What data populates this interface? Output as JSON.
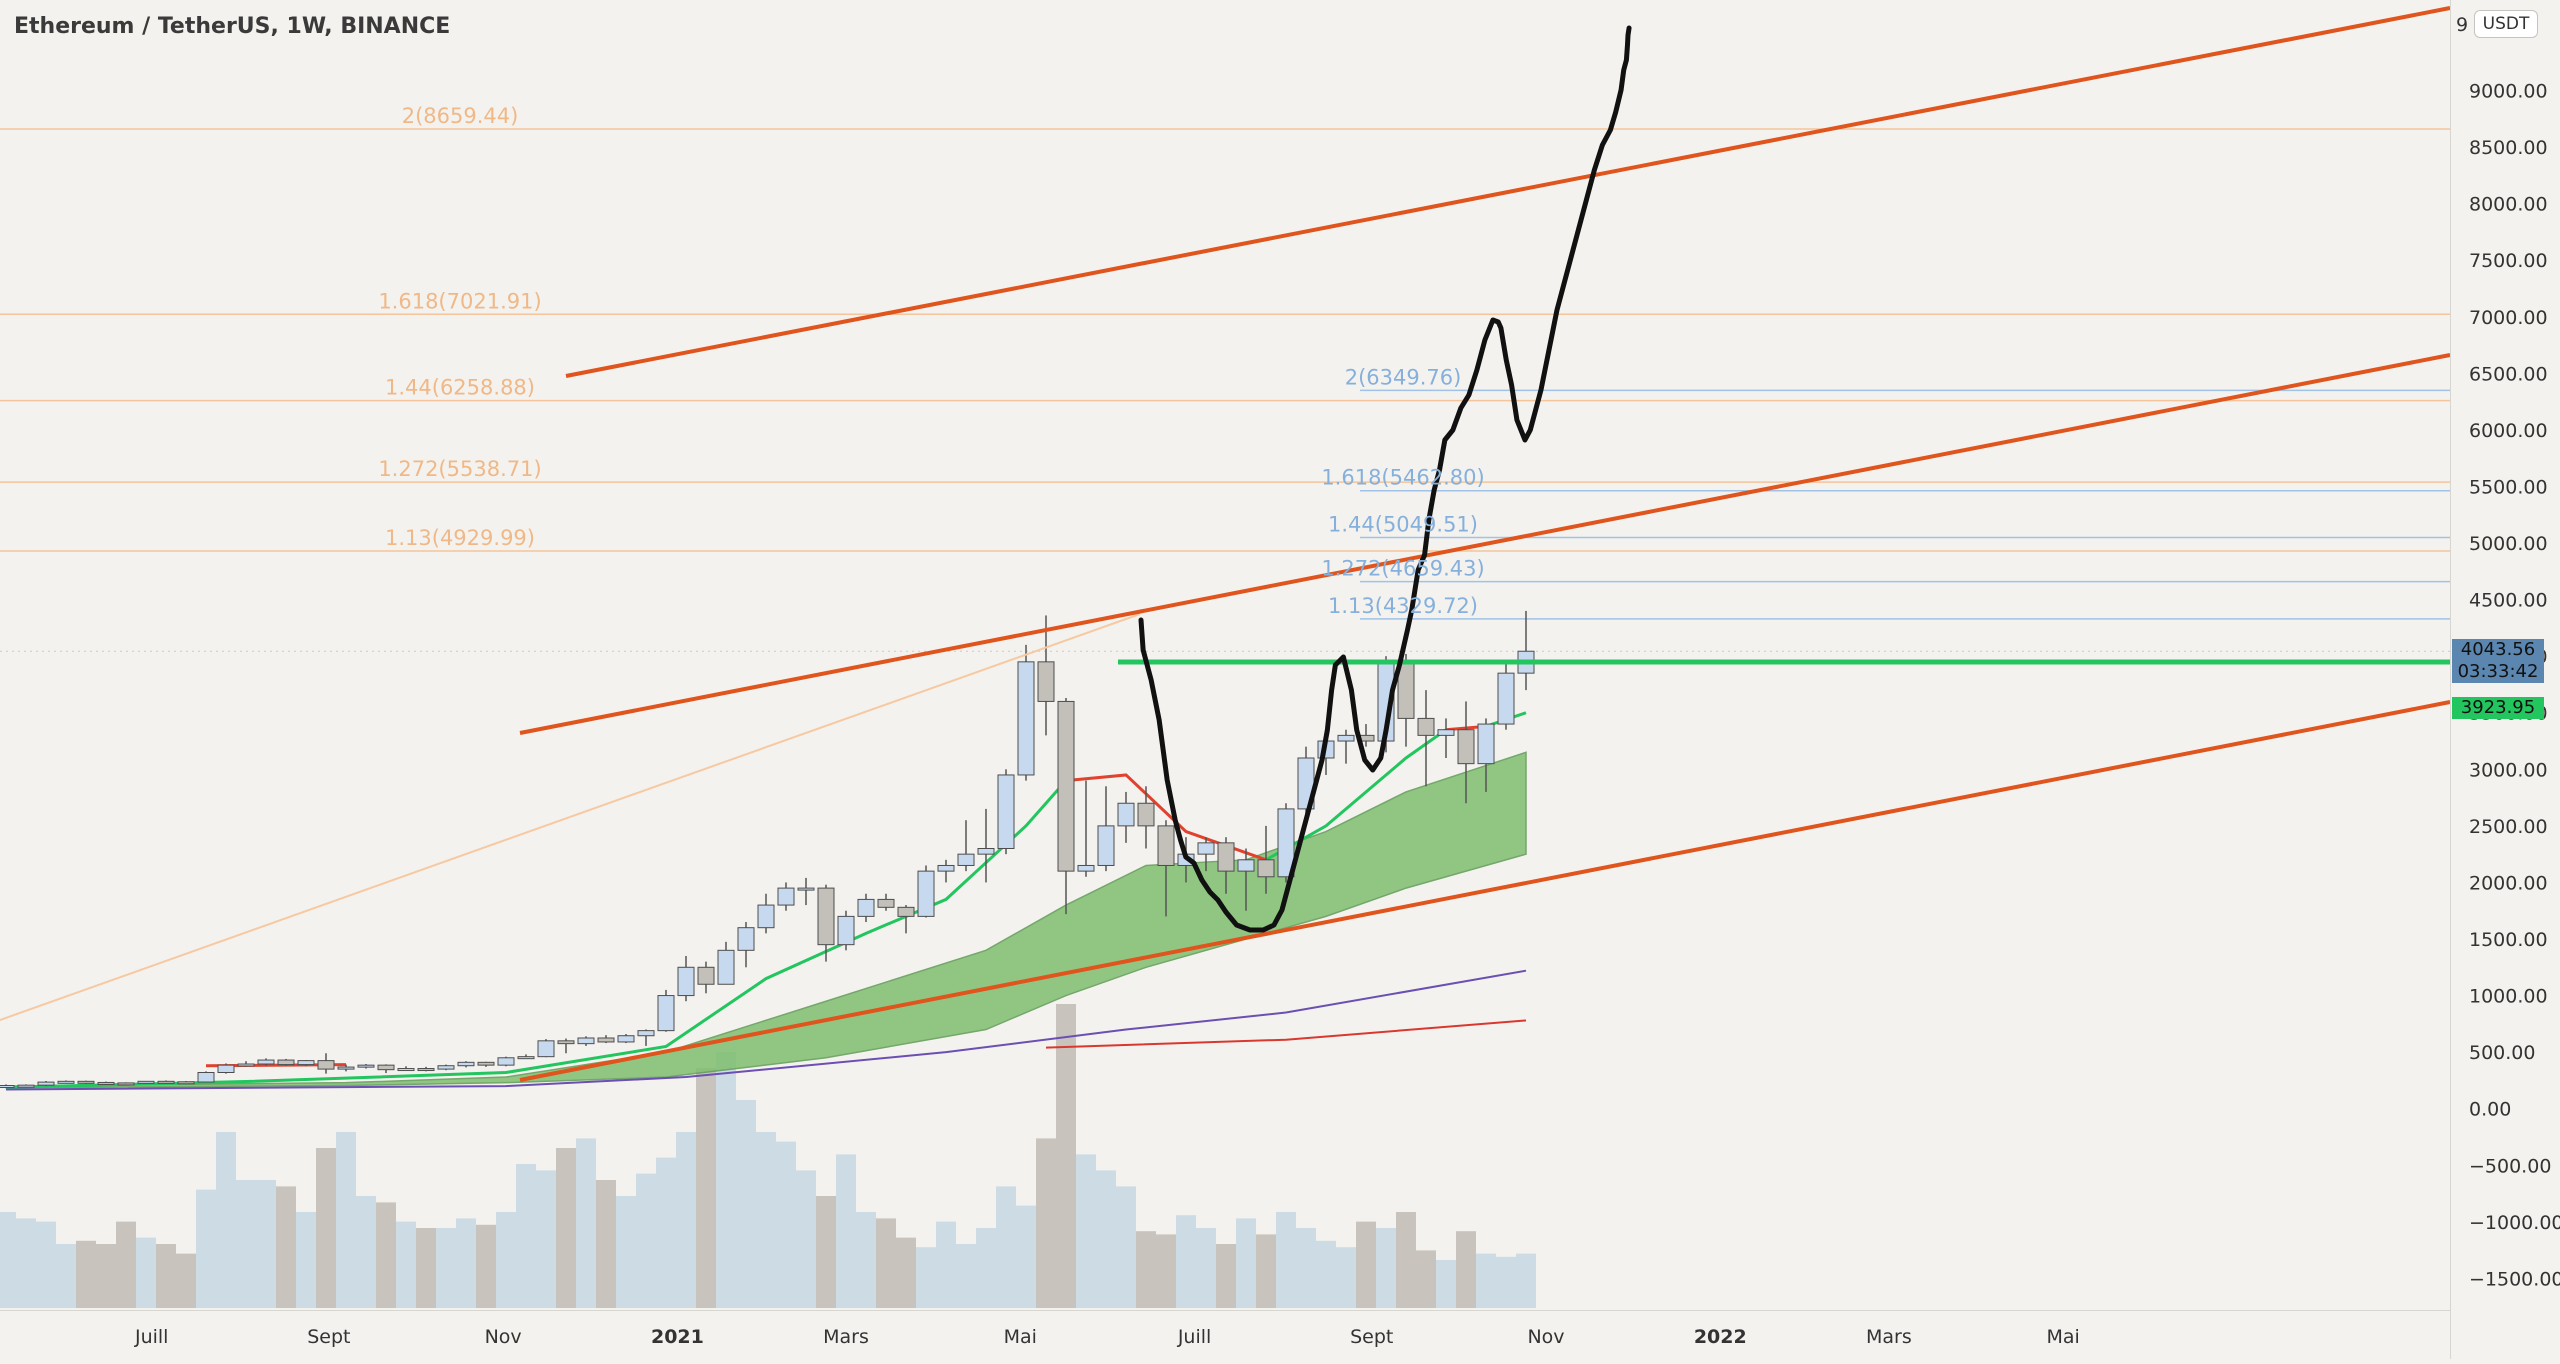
{
  "header": {
    "title": "Ethereum / TetherUS, 1W, BINANCE"
  },
  "axis": {
    "currency_label": "USDT",
    "top_partial_digit": "9",
    "y_ticks": [
      "9000.00",
      "8500.00",
      "8000.00",
      "7500.00",
      "7000.00",
      "6500.00",
      "6000.00",
      "5500.00",
      "5000.00",
      "4500.00",
      "4000.00",
      "3500.00",
      "3000.00",
      "2500.00",
      "2000.00",
      "1500.00",
      "1000.00",
      "500.00",
      "0.00",
      "−500.00",
      "−1000.00",
      "−1500.00"
    ],
    "x_ticks": [
      "Juill",
      "Sept",
      "Nov",
      "2021",
      "Mars",
      "Mai",
      "Juill",
      "Sept",
      "Nov",
      "2022",
      "Mars",
      "Mai"
    ],
    "x_ticks_bold": [
      "2021",
      "2022"
    ],
    "last_price": "4043.56",
    "countdown": "03:33:42",
    "ma_value": "3923.95"
  },
  "colors": {
    "background": "#f4f2ee",
    "candle_up": "#c6d9ef",
    "candle_down": "#c3c0ba",
    "channel": "#e0541d",
    "neckline": "#22c55e",
    "cloud": "#7fbf6f",
    "ema_fast": "#22c55e",
    "ema_red": "#e0422f",
    "ma_purple": "#6b4fb3",
    "ma_red": "#d9382f",
    "drawing": "#111111",
    "fib_orange": "#f5c49a",
    "fib_blue": "#9fc2e6",
    "price_badge": "#5b86b0",
    "ma_badge": "#22c55e"
  },
  "chart_data": {
    "type": "candlestick",
    "title": "Ethereum / TetherUS, 1W, BINANCE",
    "x_range": [
      "2020-05-11",
      "2022-07-04"
    ],
    "y_range": [
      -1750,
      9850
    ],
    "candles": [
      {
        "date": "2020-05-11",
        "open": 190,
        "high": 215,
        "low": 185,
        "close": 205
      },
      {
        "date": "2020-05-18",
        "open": 205,
        "high": 215,
        "low": 195,
        "close": 208
      },
      {
        "date": "2020-05-25",
        "open": 208,
        "high": 245,
        "low": 200,
        "close": 235
      },
      {
        "date": "2020-06-01",
        "open": 235,
        "high": 250,
        "low": 225,
        "close": 242
      },
      {
        "date": "2020-06-08",
        "open": 242,
        "high": 248,
        "low": 220,
        "close": 232
      },
      {
        "date": "2020-06-15",
        "open": 232,
        "high": 240,
        "low": 225,
        "close": 228
      },
      {
        "date": "2020-06-22",
        "open": 228,
        "high": 233,
        "low": 215,
        "close": 225
      },
      {
        "date": "2020-06-29",
        "open": 225,
        "high": 245,
        "low": 222,
        "close": 242
      },
      {
        "date": "2020-07-06",
        "open": 242,
        "high": 250,
        "low": 235,
        "close": 238
      },
      {
        "date": "2020-07-13",
        "open": 238,
        "high": 245,
        "low": 230,
        "close": 236
      },
      {
        "date": "2020-07-20",
        "open": 236,
        "high": 330,
        "low": 232,
        "close": 320
      },
      {
        "date": "2020-07-27",
        "open": 320,
        "high": 400,
        "low": 310,
        "close": 385
      },
      {
        "date": "2020-08-03",
        "open": 385,
        "high": 420,
        "low": 370,
        "close": 395
      },
      {
        "date": "2020-08-10",
        "open": 395,
        "high": 445,
        "low": 380,
        "close": 430
      },
      {
        "date": "2020-08-17",
        "open": 430,
        "high": 440,
        "low": 380,
        "close": 390
      },
      {
        "date": "2020-08-24",
        "open": 390,
        "high": 430,
        "low": 375,
        "close": 425
      },
      {
        "date": "2020-08-31",
        "open": 425,
        "high": 490,
        "low": 310,
        "close": 350
      },
      {
        "date": "2020-09-07",
        "open": 350,
        "high": 390,
        "low": 330,
        "close": 368
      },
      {
        "date": "2020-09-14",
        "open": 368,
        "high": 395,
        "low": 355,
        "close": 385
      },
      {
        "date": "2020-09-21",
        "open": 385,
        "high": 392,
        "low": 315,
        "close": 345
      },
      {
        "date": "2020-09-28",
        "open": 345,
        "high": 375,
        "low": 335,
        "close": 355
      },
      {
        "date": "2020-10-05",
        "open": 355,
        "high": 370,
        "low": 330,
        "close": 350
      },
      {
        "date": "2020-10-12",
        "open": 350,
        "high": 390,
        "low": 340,
        "close": 380
      },
      {
        "date": "2020-10-19",
        "open": 380,
        "high": 420,
        "low": 365,
        "close": 410
      },
      {
        "date": "2020-10-26",
        "open": 410,
        "high": 415,
        "low": 370,
        "close": 385
      },
      {
        "date": "2020-11-02",
        "open": 385,
        "high": 460,
        "low": 375,
        "close": 450
      },
      {
        "date": "2020-11-09",
        "open": 450,
        "high": 480,
        "low": 440,
        "close": 460
      },
      {
        "date": "2020-11-16",
        "open": 460,
        "high": 615,
        "low": 455,
        "close": 600
      },
      {
        "date": "2020-11-23",
        "open": 600,
        "high": 620,
        "low": 490,
        "close": 575
      },
      {
        "date": "2020-11-30",
        "open": 575,
        "high": 640,
        "low": 555,
        "close": 625
      },
      {
        "date": "2020-12-07",
        "open": 625,
        "high": 650,
        "low": 580,
        "close": 590
      },
      {
        "date": "2020-12-14",
        "open": 590,
        "high": 660,
        "low": 580,
        "close": 645
      },
      {
        "date": "2020-12-21",
        "open": 645,
        "high": 700,
        "low": 555,
        "close": 690
      },
      {
        "date": "2020-12-28",
        "open": 690,
        "high": 1050,
        "low": 680,
        "close": 1000
      },
      {
        "date": "2021-01-04",
        "open": 1000,
        "high": 1350,
        "low": 950,
        "close": 1250
      },
      {
        "date": "2021-01-11",
        "open": 1250,
        "high": 1300,
        "low": 1020,
        "close": 1100
      },
      {
        "date": "2021-01-18",
        "open": 1100,
        "high": 1475,
        "low": 1100,
        "close": 1400
      },
      {
        "date": "2021-01-25",
        "open": 1400,
        "high": 1650,
        "low": 1250,
        "close": 1600
      },
      {
        "date": "2021-02-01",
        "open": 1600,
        "high": 1900,
        "low": 1550,
        "close": 1800
      },
      {
        "date": "2021-02-08",
        "open": 1800,
        "high": 2000,
        "low": 1750,
        "close": 1950
      },
      {
        "date": "2021-02-15",
        "open": 1950,
        "high": 2040,
        "low": 1800,
        "close": 1950
      },
      {
        "date": "2021-02-22",
        "open": 1950,
        "high": 1980,
        "low": 1300,
        "close": 1450
      },
      {
        "date": "2021-03-01",
        "open": 1450,
        "high": 1750,
        "low": 1400,
        "close": 1700
      },
      {
        "date": "2021-03-08",
        "open": 1700,
        "high": 1900,
        "low": 1650,
        "close": 1850
      },
      {
        "date": "2021-03-15",
        "open": 1850,
        "high": 1900,
        "low": 1750,
        "close": 1780
      },
      {
        "date": "2021-03-22",
        "open": 1780,
        "high": 1800,
        "low": 1550,
        "close": 1700
      },
      {
        "date": "2021-03-29",
        "open": 1700,
        "high": 2150,
        "low": 1690,
        "close": 2100
      },
      {
        "date": "2021-04-05",
        "open": 2100,
        "high": 2200,
        "low": 2000,
        "close": 2150
      },
      {
        "date": "2021-04-12",
        "open": 2150,
        "high": 2550,
        "low": 2100,
        "close": 2250
      },
      {
        "date": "2021-04-19",
        "open": 2250,
        "high": 2650,
        "low": 2000,
        "close": 2300
      },
      {
        "date": "2021-04-26",
        "open": 2300,
        "high": 3000,
        "low": 2250,
        "close": 2950
      },
      {
        "date": "2021-05-03",
        "open": 2950,
        "high": 4100,
        "low": 2900,
        "close": 3950
      },
      {
        "date": "2021-05-10",
        "open": 3950,
        "high": 4360,
        "low": 3300,
        "close": 3600
      },
      {
        "date": "2021-05-17",
        "open": 3600,
        "high": 3630,
        "low": 1720,
        "close": 2100
      },
      {
        "date": "2021-05-24",
        "open": 2100,
        "high": 2900,
        "low": 2050,
        "close": 2150
      },
      {
        "date": "2021-05-31",
        "open": 2150,
        "high": 2850,
        "low": 2100,
        "close": 2500
      },
      {
        "date": "2021-06-07",
        "open": 2500,
        "high": 2800,
        "low": 2350,
        "close": 2700
      },
      {
        "date": "2021-06-14",
        "open": 2700,
        "high": 2850,
        "low": 2300,
        "close": 2500
      },
      {
        "date": "2021-06-21",
        "open": 2500,
        "high": 2550,
        "low": 1700,
        "close": 2150
      },
      {
        "date": "2021-06-28",
        "open": 2150,
        "high": 2400,
        "low": 2000,
        "close": 2250
      },
      {
        "date": "2021-07-05",
        "open": 2250,
        "high": 2400,
        "low": 2100,
        "close": 2350
      },
      {
        "date": "2021-07-12",
        "open": 2350,
        "high": 2400,
        "low": 1900,
        "close": 2100
      },
      {
        "date": "2021-07-19",
        "open": 2100,
        "high": 2300,
        "low": 1750,
        "close": 2200
      },
      {
        "date": "2021-07-26",
        "open": 2200,
        "high": 2500,
        "low": 1900,
        "close": 2050
      },
      {
        "date": "2021-08-02",
        "open": 2050,
        "high": 2700,
        "low": 2000,
        "close": 2650
      },
      {
        "date": "2021-08-09",
        "open": 2650,
        "high": 3200,
        "low": 2550,
        "close": 3100
      },
      {
        "date": "2021-08-16",
        "open": 3100,
        "high": 3300,
        "low": 2950,
        "close": 3250
      },
      {
        "date": "2021-08-23",
        "open": 3250,
        "high": 3350,
        "low": 3050,
        "close": 3300
      },
      {
        "date": "2021-08-30",
        "open": 3300,
        "high": 3400,
        "low": 3200,
        "close": 3250
      },
      {
        "date": "2021-09-06",
        "open": 3250,
        "high": 4000,
        "low": 3150,
        "close": 3950
      },
      {
        "date": "2021-09-13",
        "open": 3950,
        "high": 4020,
        "low": 3200,
        "close": 3450
      },
      {
        "date": "2021-09-20",
        "open": 3450,
        "high": 3700,
        "low": 2850,
        "close": 3300
      },
      {
        "date": "2021-09-27",
        "open": 3300,
        "high": 3450,
        "low": 3100,
        "close": 3350
      },
      {
        "date": "2021-10-04",
        "open": 3350,
        "high": 3600,
        "low": 2700,
        "close": 3050
      },
      {
        "date": "2021-10-11",
        "open": 3050,
        "high": 3450,
        "low": 2800,
        "close": 3400
      },
      {
        "date": "2021-10-18",
        "open": 3400,
        "high": 3950,
        "low": 3350,
        "close": 3850
      },
      {
        "date": "2021-10-25",
        "open": 3850,
        "high": 4400,
        "low": 3700,
        "close": 4043.56
      }
    ],
    "volume_series": [
      30,
      28,
      27,
      20,
      21,
      20,
      27,
      22,
      20,
      17,
      37,
      55,
      40,
      40,
      38,
      30,
      50,
      55,
      35,
      33,
      27,
      25,
      25,
      28,
      26,
      30,
      45,
      43,
      50,
      53,
      40,
      35,
      42,
      47,
      55,
      75,
      80,
      65,
      55,
      52,
      43,
      35,
      48,
      30,
      28,
      22,
      19,
      27,
      20,
      25,
      38,
      32,
      53,
      95,
      48,
      43,
      38,
      24,
      23,
      29,
      25,
      20,
      28,
      23,
      30,
      25,
      21,
      19,
      27,
      25,
      30,
      18,
      15,
      24,
      17,
      16,
      17
    ],
    "fib_levels_left": [
      {
        "label": "2(8659.44)",
        "value": 8659.44
      },
      {
        "label": "1.618(7021.91)",
        "value": 7021.91
      },
      {
        "label": "1.44(6258.88)",
        "value": 6258.88
      },
      {
        "label": "1.272(5538.71)",
        "value": 5538.71
      },
      {
        "label": "1.13(4929.99)",
        "value": 4929.99
      }
    ],
    "fib_levels_right": [
      {
        "label": "2(6349.76)",
        "value": 6349.76
      },
      {
        "label": "1.618(5462.80)",
        "value": 5462.8
      },
      {
        "label": "1.44(5049.51)",
        "value": 5049.51
      },
      {
        "label": "1.272(4659.43)",
        "value": 4659.43
      },
      {
        "label": "1.13(4329.72)",
        "value": 4329.72
      }
    ]
  }
}
